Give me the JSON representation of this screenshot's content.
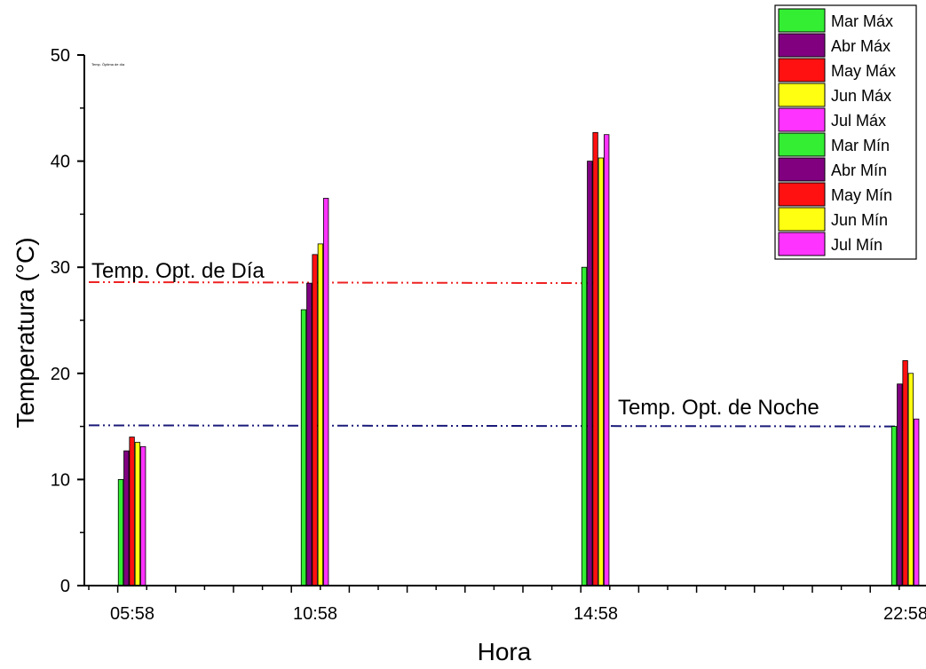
{
  "chart_data": {
    "type": "bar",
    "xlabel": "Hora",
    "ylabel": "Temperatura (°C)",
    "ylim": [
      0,
      50
    ],
    "yticks": [
      "0",
      "10",
      "20",
      "30",
      "40",
      "50"
    ],
    "x_tick_labels": [
      "05:58",
      "10:58",
      "14:58",
      "22:58"
    ],
    "categories": [
      "05:58",
      "10:58",
      "14:58",
      "22:58"
    ],
    "series": [
      {
        "name": "Mar Máx",
        "color": "#33ee33",
        "values": [
          null,
          null,
          null,
          null
        ]
      },
      {
        "name": "Abr Máx",
        "color": "#800080",
        "values": [
          null,
          null,
          null,
          null
        ]
      },
      {
        "name": "May Máx",
        "color": "#ff1111",
        "values": [
          null,
          null,
          null,
          null
        ]
      },
      {
        "name": "Jun Máx",
        "color": "#ffff11",
        "values": [
          null,
          null,
          null,
          null
        ]
      },
      {
        "name": "Jul Máx",
        "color": "#ff33ff",
        "values": [
          null,
          null,
          null,
          null
        ]
      },
      {
        "name": "Mar Mín",
        "color": "#33ee33",
        "values": [
          10.0,
          26.0,
          30.0,
          15.0
        ]
      },
      {
        "name": "Abr Mín",
        "color": "#800080",
        "values": [
          12.7,
          28.5,
          40.0,
          19.0
        ]
      },
      {
        "name": "May Mín",
        "color": "#ff1111",
        "values": [
          14.0,
          31.2,
          42.7,
          21.2
        ]
      },
      {
        "name": "Jun Mín",
        "color": "#ffff11",
        "values": [
          13.5,
          32.2,
          40.3,
          20.0
        ]
      },
      {
        "name": "Jul Mín",
        "color": "#ff33ff",
        "values": [
          13.1,
          36.5,
          42.5,
          15.7
        ]
      }
    ],
    "reference_lines": [
      {
        "label": "Temp. Opt. de Día",
        "y_start": 28.6,
        "y_end": 28.5,
        "color": "#ee2222",
        "style": "dash-dot-dot"
      },
      {
        "label": "Temp. Opt. de Noche",
        "y_start": 15.1,
        "y_end": 15.0,
        "color": "#1a1a7a",
        "style": "dash-dot-dot"
      }
    ],
    "small_annotation": "Temp. Óptima de día",
    "legend_position": "top-right",
    "grid": false
  }
}
